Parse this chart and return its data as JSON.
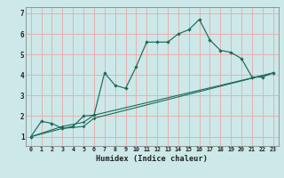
{
  "title": "",
  "xlabel": "Humidex (Indice chaleur)",
  "bg_color": "#cce8e8",
  "grid_color": "#e8b0b0",
  "line_color": "#1a6b5a",
  "xlim": [
    -0.5,
    23.5
  ],
  "ylim": [
    0.55,
    7.3
  ],
  "yticks": [
    1,
    2,
    3,
    4,
    5,
    6,
    7
  ],
  "xticks": [
    0,
    1,
    2,
    3,
    4,
    5,
    6,
    7,
    8,
    9,
    10,
    11,
    12,
    13,
    14,
    15,
    16,
    17,
    18,
    19,
    20,
    21,
    22,
    23
  ],
  "line1_x": [
    0,
    1,
    2,
    3,
    4,
    5,
    6,
    7,
    8,
    9,
    10,
    11,
    12,
    13,
    14,
    15,
    16,
    17,
    18,
    19,
    20,
    21,
    22,
    23
  ],
  "line1_y": [
    1.0,
    1.75,
    1.65,
    1.4,
    1.5,
    2.0,
    2.05,
    4.1,
    3.5,
    3.35,
    4.4,
    5.6,
    5.6,
    5.6,
    6.0,
    6.2,
    6.7,
    5.7,
    5.2,
    5.1,
    4.8,
    3.9,
    3.9,
    4.1
  ],
  "line2_x": [
    0,
    3,
    5,
    6,
    23
  ],
  "line2_y": [
    1.0,
    1.5,
    1.7,
    2.05,
    4.1
  ],
  "line3_x": [
    0,
    3,
    5,
    6,
    23
  ],
  "line3_y": [
    1.0,
    1.4,
    1.5,
    1.9,
    4.1
  ]
}
